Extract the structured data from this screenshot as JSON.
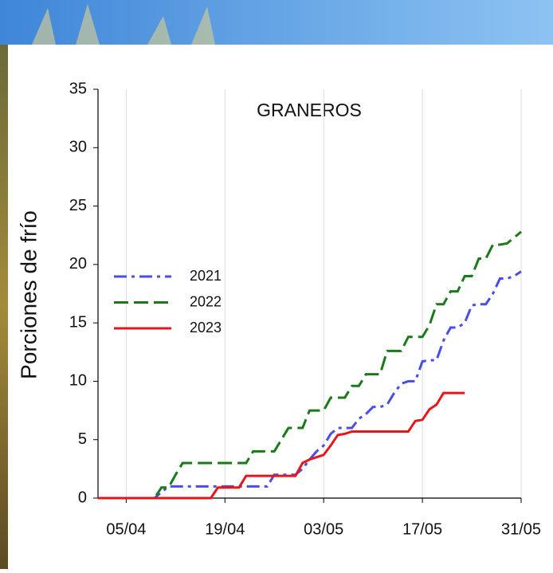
{
  "chart_data": {
    "type": "line",
    "title": "GRANEROS",
    "y_label": "Porciones de frío",
    "x": [
      "01/04",
      "02/04",
      "03/04",
      "04/04",
      "05/04",
      "06/04",
      "07/04",
      "08/04",
      "09/04",
      "10/04",
      "11/04",
      "12/04",
      "13/04",
      "14/04",
      "15/04",
      "16/04",
      "17/04",
      "18/04",
      "19/04",
      "20/04",
      "21/04",
      "22/04",
      "23/04",
      "24/04",
      "25/04",
      "26/04",
      "27/04",
      "28/04",
      "29/04",
      "30/04",
      "01/05",
      "02/05",
      "03/05",
      "04/05",
      "05/05",
      "06/05",
      "07/05",
      "08/05",
      "09/05",
      "10/05",
      "11/05",
      "12/05",
      "13/05",
      "14/05",
      "15/05",
      "16/05",
      "17/05",
      "18/05",
      "19/05",
      "20/05",
      "21/05",
      "22/05",
      "23/05",
      "24/05",
      "25/05",
      "26/05",
      "27/05",
      "28/05",
      "29/05",
      "30/05",
      "31/05"
    ],
    "xlim": [
      "01/04",
      "31/05"
    ],
    "xticks": [
      "05/04",
      "19/04",
      "03/05",
      "17/05",
      "31/05"
    ],
    "ylim": [
      0,
      35
    ],
    "yticks": [
      0,
      5,
      10,
      15,
      20,
      25,
      30,
      35
    ],
    "grid": "x",
    "legend": "center left",
    "series": [
      {
        "name": "2021",
        "color": "#4a4ee6",
        "linestyle": "dashdot",
        "values": [
          0,
          0,
          0,
          0,
          0,
          0,
          0,
          0,
          0,
          0.5,
          1,
          1,
          1,
          1,
          1,
          1,
          1,
          1,
          1,
          1,
          1,
          1,
          1,
          1,
          1,
          2,
          2,
          2,
          2,
          2.5,
          3.3,
          4,
          4.5,
          5.5,
          6,
          6,
          6,
          6.8,
          7.2,
          7.8,
          7.8,
          8,
          9,
          9.8,
          10,
          10,
          11.7,
          11.8,
          11.8,
          13.5,
          14.6,
          14.6,
          15,
          16.5,
          16.6,
          16.6,
          17.5,
          18.8,
          18.8,
          19,
          19.4
        ]
      },
      {
        "name": "2022",
        "color": "#1a7a1a",
        "linestyle": "dashed",
        "values": [
          0,
          0,
          0,
          0,
          0,
          0,
          0,
          0,
          0,
          0.9,
          0.9,
          2,
          3,
          3,
          3,
          3,
          3,
          3,
          3,
          3,
          3,
          3,
          4,
          4,
          4,
          4,
          5,
          6,
          6,
          6,
          7.5,
          7.5,
          7.5,
          8.6,
          8.6,
          8.6,
          9.6,
          9.6,
          10.6,
          10.6,
          10.6,
          12.6,
          12.6,
          12.6,
          13.8,
          13.8,
          13.8,
          14.8,
          16.6,
          16.6,
          17.7,
          17.7,
          19,
          19,
          20.5,
          20.5,
          21.7,
          21.7,
          21.8,
          22.3,
          22.8
        ]
      },
      {
        "name": "2023",
        "color": "#e8161b",
        "linestyle": "solid",
        "values": [
          0,
          0,
          0,
          0,
          0,
          0,
          0,
          0,
          0,
          0,
          0,
          0,
          0,
          0,
          0,
          0,
          0,
          0.9,
          0.9,
          0.9,
          0.9,
          1.9,
          1.9,
          1.9,
          1.9,
          1.9,
          1.9,
          1.9,
          1.9,
          3,
          3.3,
          3.5,
          3.7,
          4.5,
          5.4,
          5.5,
          5.7,
          5.7,
          5.7,
          5.7,
          5.7,
          5.7,
          5.7,
          5.7,
          5.7,
          6.6,
          6.7,
          7.6,
          8,
          9,
          9,
          9,
          9,
          null,
          null,
          null,
          null,
          null,
          null,
          null,
          null
        ]
      }
    ]
  }
}
